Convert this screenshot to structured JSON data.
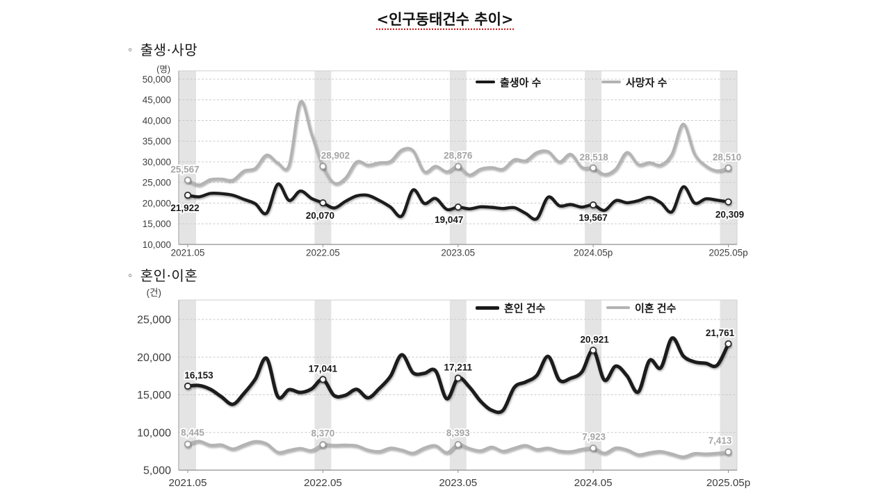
{
  "title": "<인구동태건수 추이>",
  "sections": [
    {
      "bullet": "◦",
      "heading": "출생·사망"
    },
    {
      "bullet": "◦",
      "heading": "혼인·이혼"
    }
  ],
  "chart_data": [
    {
      "type": "line",
      "title": "출생·사망",
      "unit": "(명)",
      "grid": true,
      "legend_position": "top-inside",
      "y_axis": {
        "min": 10000,
        "max": 50000,
        "step": 5000
      },
      "x_tick_labels": [
        "2021.05",
        "2022.05",
        "2023.05",
        "2024.05p",
        "2025.05p"
      ],
      "labeled_indices": [
        0,
        12,
        24,
        36,
        48
      ],
      "highlight_band_color": "#e4e4e4",
      "series": [
        {
          "name": "출생아 수",
          "color": "#1a1a1a",
          "marker_color": "#2b2b2b",
          "label_color": "#171717",
          "labeled_values": [
            21922,
            20070,
            19047,
            19567,
            20309
          ],
          "values": [
            21922,
            21526,
            22352,
            22297,
            21920,
            20910,
            19842,
            17573,
            24598,
            20654,
            22925,
            21124,
            20070,
            18830,
            20441,
            21758,
            21885,
            20658,
            19043,
            16896,
            23179,
            19939,
            21138,
            18484,
            19047,
            18615,
            19102,
            18984,
            18707,
            18904,
            17531,
            16253,
            21442,
            19362,
            19669,
            19049,
            19567,
            18242,
            20601,
            20098,
            20590,
            21398,
            20095,
            17913,
            23947,
            20035,
            21041,
            20717,
            20309
          ]
        },
        {
          "name": "사망자 수",
          "color": "#b3b3b3",
          "marker_color": "#9a9a9a",
          "label_color": "#a5a5a5",
          "labeled_values": [
            25567,
            28902,
            28876,
            28518,
            28510
          ],
          "values": [
            25567,
            24391,
            25690,
            25837,
            25566,
            27783,
            28426,
            31634,
            29686,
            29189,
            44487,
            36697,
            28902,
            24850,
            26030,
            30001,
            29199,
            29763,
            30107,
            32865,
            32703,
            27603,
            28922,
            27581,
            28876,
            26820,
            28239,
            28603,
            28233,
            30520,
            30255,
            32260,
            32490,
            29977,
            31839,
            28659,
            28518,
            26942,
            28240,
            32244,
            29362,
            29819,
            29219,
            31892,
            39115,
            31922,
            29000,
            27810,
            28510
          ]
        }
      ]
    },
    {
      "type": "line",
      "title": "혼인·이혼",
      "unit": "(건)",
      "grid": true,
      "legend_position": "top-inside",
      "y_axis": {
        "min": 5000,
        "max": 25000,
        "step": 5000
      },
      "x_tick_labels": [
        "2021.05",
        "2022.05",
        "2023.05",
        "2024.05",
        "2025.05p"
      ],
      "labeled_indices": [
        0,
        12,
        24,
        36,
        48
      ],
      "highlight_band_color": "#e4e4e4",
      "series": [
        {
          "name": "혼인 건수",
          "color": "#1a1a1a",
          "marker_color": "#2b2b2b",
          "label_color": "#171717",
          "labeled_values": [
            16153,
            17041,
            17211,
            20921,
            21761
          ],
          "values": [
            16153,
            16235,
            15739,
            14720,
            13733,
            15203,
            17088,
            19841,
            14753,
            15681,
            15316,
            15795,
            17041,
            14898,
            14947,
            15718,
            14594,
            15832,
            17458,
            20312,
            17926,
            17846,
            18192,
            14475,
            17211,
            16053,
            14155,
            12941,
            12951,
            15986,
            16695,
            17582,
            20093,
            16949,
            17198,
            18039,
            20921,
            16948,
            18811,
            17527,
            15368,
            19551,
            18581,
            22525,
            20153,
            19370,
            19181,
            18921,
            21761
          ]
        },
        {
          "name": "이혼 건수",
          "color": "#b3b3b3",
          "marker_color": "#9a9a9a",
          "label_color": "#a5a5a5",
          "labeled_values": [
            8445,
            8370,
            8393,
            7923,
            7413
          ],
          "values": [
            8445,
            8832,
            8306,
            8344,
            7811,
            8349,
            8799,
            8483,
            7364,
            7622,
            7882,
            7602,
            8370,
            8287,
            8327,
            8227,
            7668,
            7466,
            7923,
            7664,
            7251,
            7932,
            8247,
            7314,
            8393,
            7871,
            7564,
            8057,
            7504,
            7916,
            8271,
            7740,
            7926,
            7531,
            7450,
            7763,
            7923,
            7240,
            7939,
            7684,
            7059,
            7300,
            7474,
            7130,
            6758,
            7199,
            7143,
            7237,
            7413
          ]
        }
      ]
    }
  ]
}
